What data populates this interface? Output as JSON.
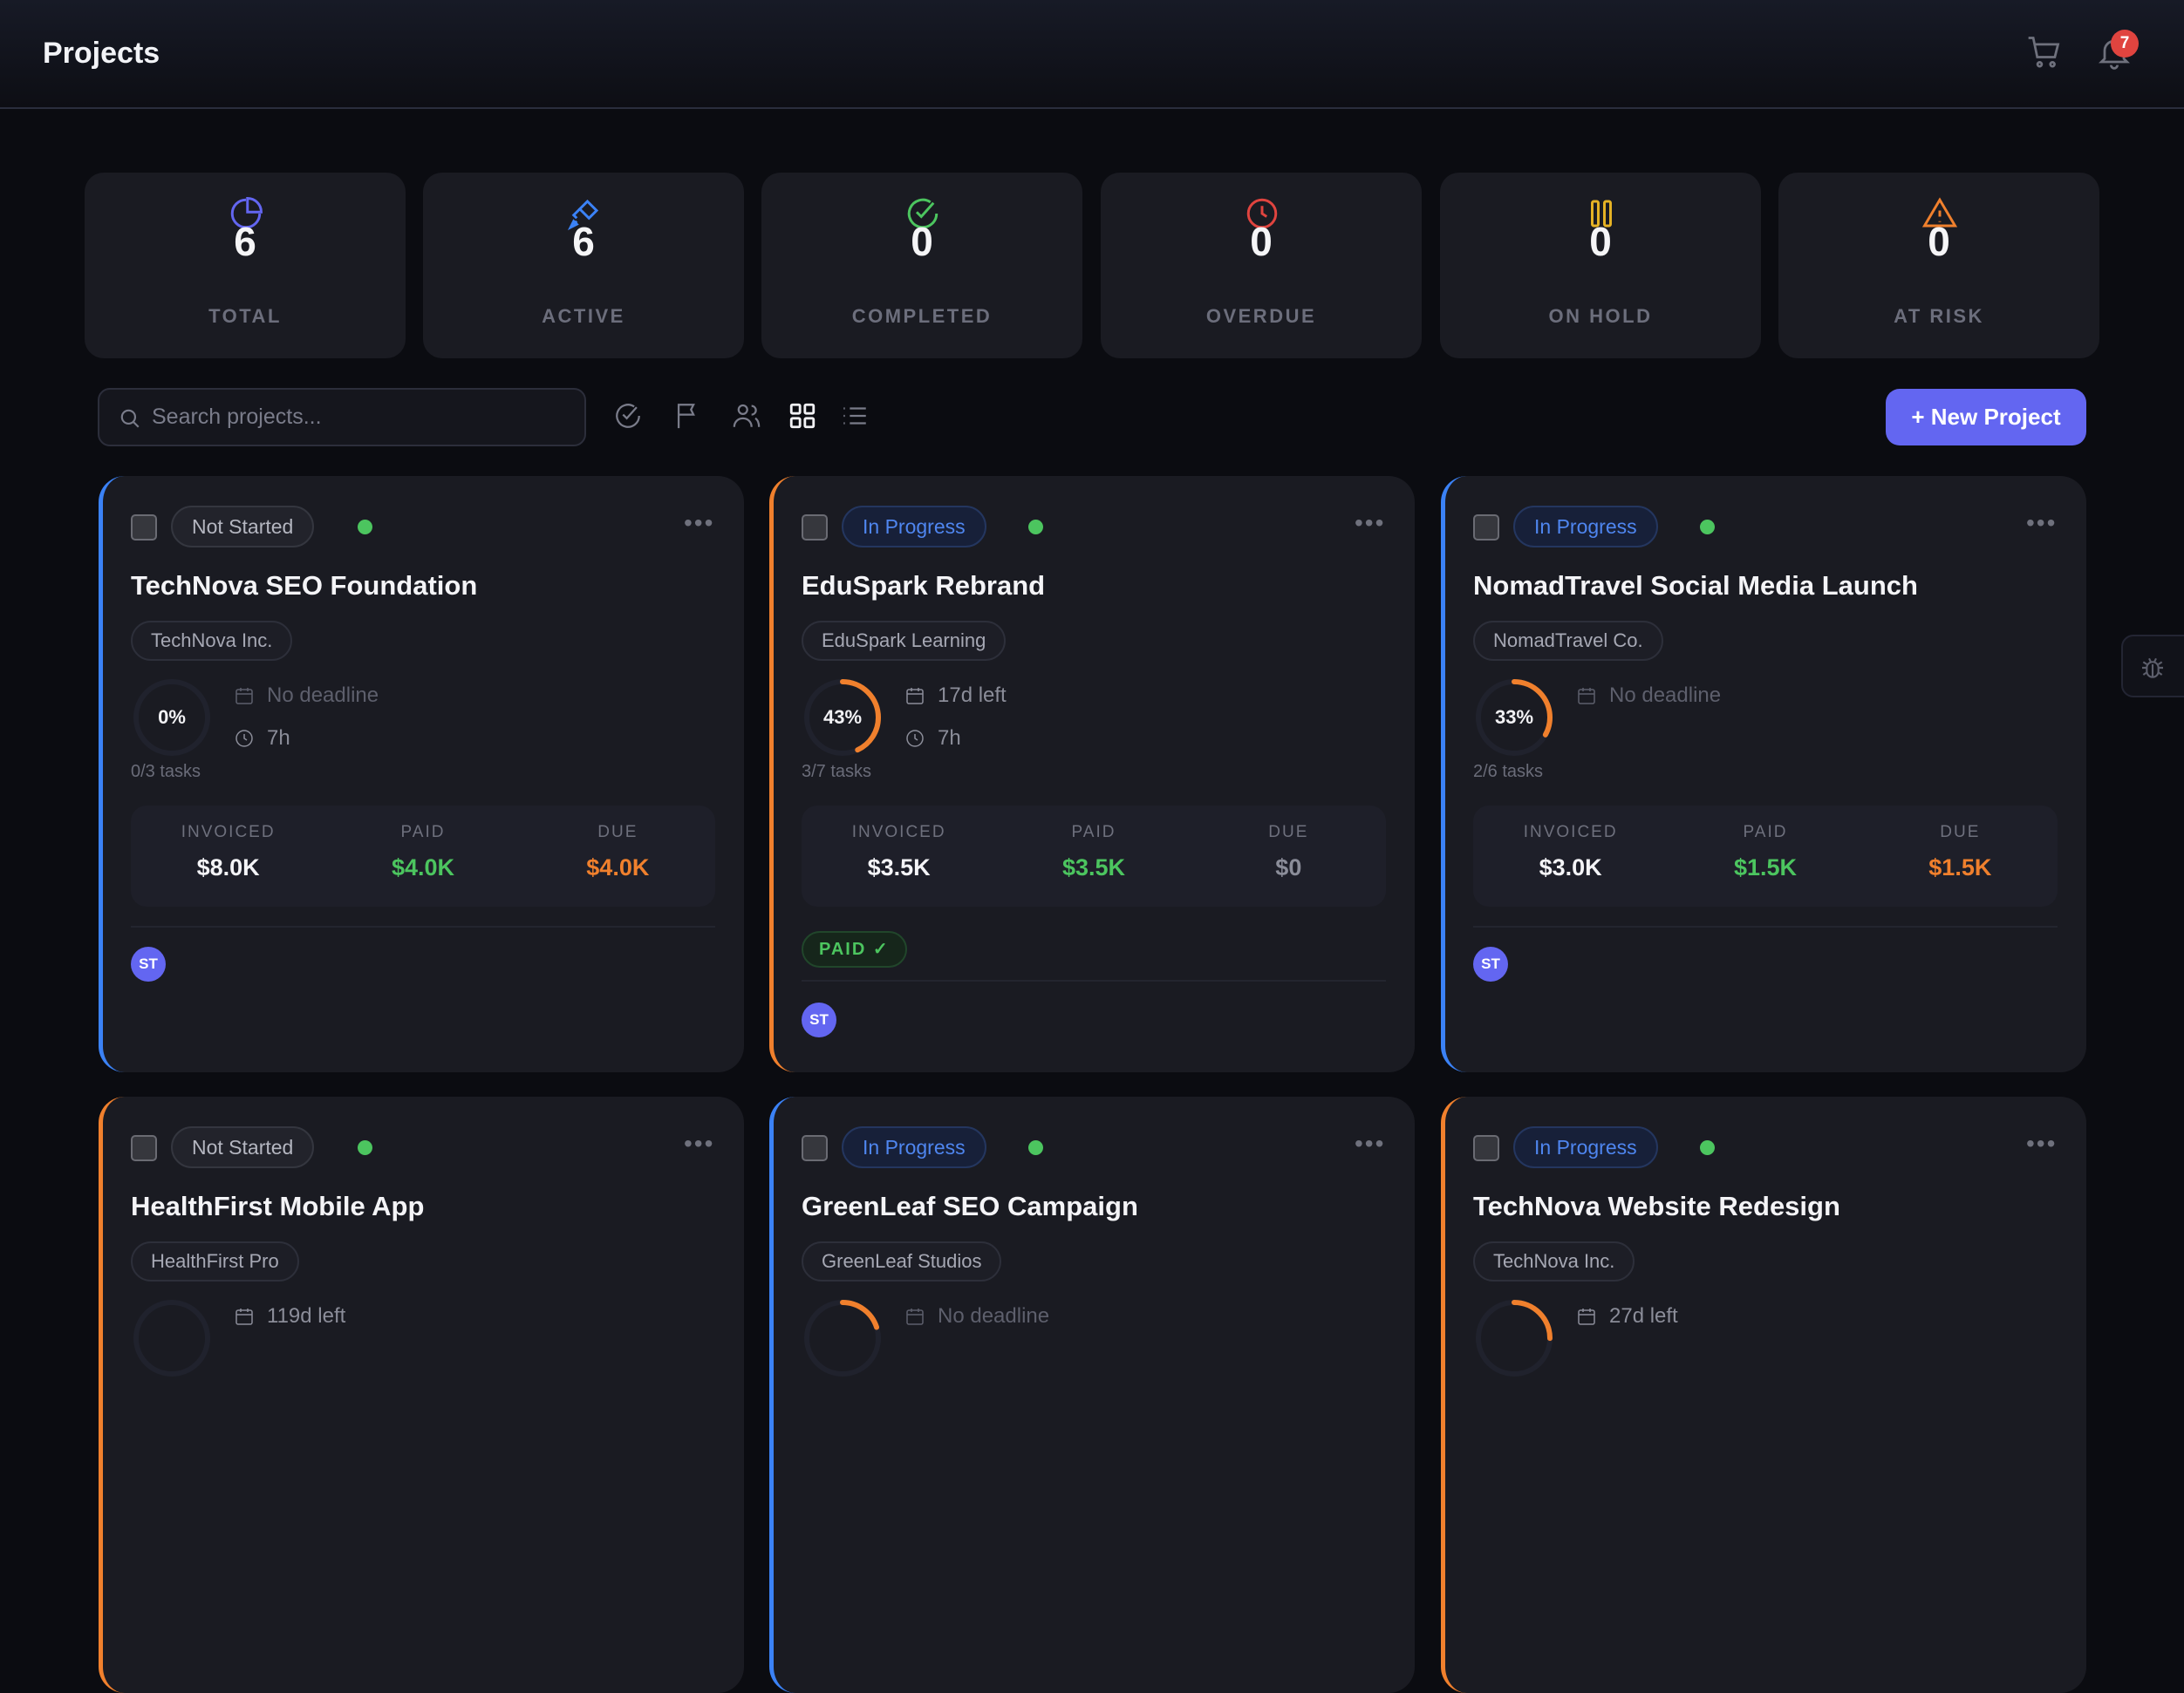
{
  "header": {
    "title": "Projects",
    "notifications_count": "7",
    "icons": [
      "cart-icon",
      "bell-icon"
    ]
  },
  "stats": [
    {
      "value": "6",
      "label": "TOTAL",
      "icon": "pie-chart-icon",
      "color": "#6366f1"
    },
    {
      "value": "6",
      "label": "ACTIVE",
      "icon": "rocket-icon",
      "color": "#3b82f6"
    },
    {
      "value": "0",
      "label": "COMPLETED",
      "icon": "check-circle-icon",
      "color": "#4cc55f"
    },
    {
      "value": "0",
      "label": "OVERDUE",
      "icon": "clock-icon",
      "color": "#e0443f"
    },
    {
      "value": "0",
      "label": "ON HOLD",
      "icon": "pause-icon",
      "color": "#e6b325"
    },
    {
      "value": "0",
      "label": "AT RISK",
      "icon": "warning-icon",
      "color": "#f0802d"
    }
  ],
  "toolbar": {
    "search_placeholder": "Search projects...",
    "new_project_label": "+ New Project",
    "active_view": "grid"
  },
  "finance_labels": {
    "invoiced": "INVOICED",
    "paid": "PAID",
    "due": "DUE"
  },
  "colors": {
    "accent": "#6366f1",
    "green": "#4cc55f",
    "orange": "#f0802d",
    "blue": "#3b82f6"
  },
  "projects": [
    {
      "status": "Not Started",
      "title": "TechNova SEO Foundation",
      "client": "TechNova Inc.",
      "progress": 0,
      "progress_label": "0%",
      "deadline": "No deadline",
      "hours": "7h",
      "tasks": "0/3 tasks",
      "invoiced": "$8.0K",
      "paid": "$4.0K",
      "due": "$4.0K",
      "due_color": "#f0802d",
      "paid_badge": "",
      "avatar": "ST",
      "accent": "blue"
    },
    {
      "status": "In Progress",
      "title": "EduSpark Rebrand",
      "client": "EduSpark Learning",
      "progress": 43,
      "progress_label": "43%",
      "deadline": "17d left",
      "hours": "7h",
      "tasks": "3/7 tasks",
      "invoiced": "$3.5K",
      "paid": "$3.5K",
      "due": "$0",
      "due_color": "#8b8d99",
      "paid_badge": "PAID ✓",
      "avatar": "ST",
      "accent": "orange"
    },
    {
      "status": "In Progress",
      "title": "NomadTravel Social Media Launch",
      "client": "NomadTravel Co.",
      "progress": 33,
      "progress_label": "33%",
      "deadline": "No deadline",
      "hours": "",
      "tasks": "2/6 tasks",
      "invoiced": "$3.0K",
      "paid": "$1.5K",
      "due": "$1.5K",
      "due_color": "#f0802d",
      "paid_badge": "",
      "avatar": "ST",
      "accent": "blue"
    },
    {
      "status": "Not Started",
      "title": "HealthFirst Mobile App",
      "client": "HealthFirst Pro",
      "progress": 0,
      "deadline": "119d left",
      "accent": "orange"
    },
    {
      "status": "In Progress",
      "title": "GreenLeaf SEO Campaign",
      "client": "GreenLeaf Studios",
      "progress": 20,
      "deadline": "No deadline",
      "accent": "blue"
    },
    {
      "status": "In Progress",
      "title": "TechNova Website Redesign",
      "client": "TechNova Inc.",
      "progress": 25,
      "deadline": "27d left",
      "accent": "orange"
    }
  ]
}
